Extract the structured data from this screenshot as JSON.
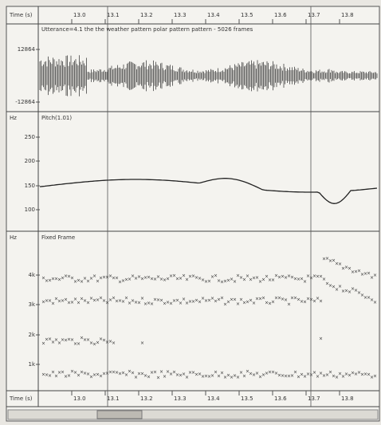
{
  "top_axis": {
    "label": "Time (s)",
    "ticks": [
      "13.0",
      "13.1",
      "13.2",
      "13.3",
      "13.4",
      "13.5",
      "13.6",
      "13.7",
      "13.8"
    ]
  },
  "bottom_axis": {
    "label": "Time (s)",
    "ticks": [
      "13.0",
      "13.1",
      "13.2",
      "13.3",
      "13.4",
      "13.5",
      "13.6",
      "13.7",
      "13.8"
    ]
  },
  "panels": [
    {
      "unit": "",
      "caption": "Utterance=4.1 the the weather pattern polar pattern pattern - 5026 frames",
      "ticks": [
        "12864",
        "-12864"
      ]
    },
    {
      "unit": "Hz",
      "caption": "Pitch(1.01)",
      "ticks": [
        "250",
        "200",
        "150",
        "100"
      ]
    },
    {
      "unit": "Hz",
      "caption": "Fixed Frame",
      "ticks": [
        "4k",
        "3k",
        "2k",
        "1k"
      ]
    }
  ]
}
